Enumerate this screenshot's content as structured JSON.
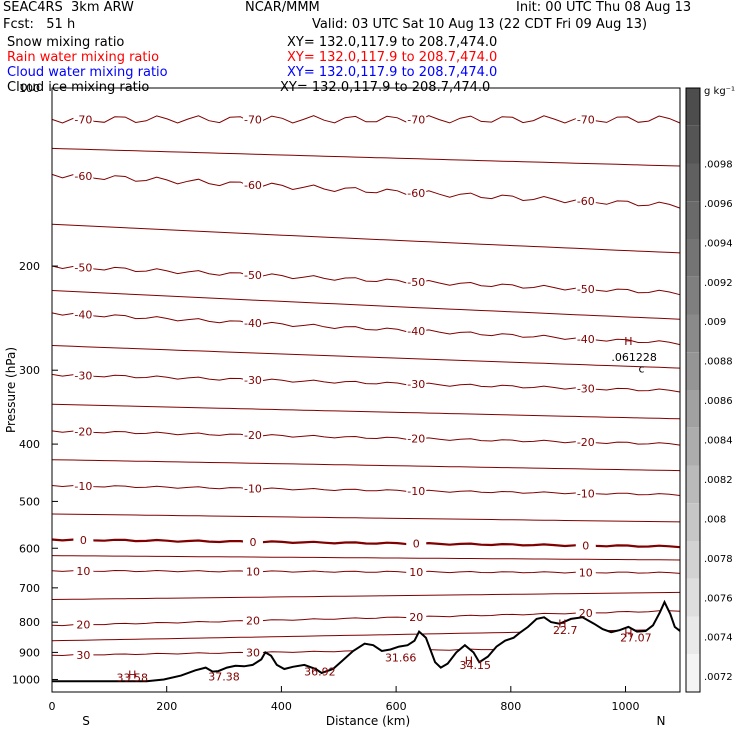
{
  "header": {
    "model": "SEAC4RS  3km ARW",
    "org": "NCAR/MMM",
    "init": "Init: 00 UTC Thu 08 Aug 13",
    "fcst": "Fcst:   51 h",
    "valid": "Valid: 03 UTC Sat 10 Aug 13 (22 CDT Fri 09 Aug 13)"
  },
  "fields": [
    {
      "name": "Snow mixing ratio",
      "xy": "XY= 132.0,117.9 to 208.7,474.0",
      "color": "#000000"
    },
    {
      "name": "Rain water mixing ratio",
      "xy": "XY= 132.0,117.9 to 208.7,474.0",
      "color": "#ff0000"
    },
    {
      "name": "Cloud water mixing ratio",
      "xy": "XY= 132.0,117.9 to 208.7,474.0",
      "color": "#0000ff"
    },
    {
      "name": "Cloud ice mixing ratio",
      "xy": "XY= 132.0,117.9 to 208.7,474.0",
      "color": "#000000"
    }
  ],
  "chart_data": {
    "type": "line",
    "xlabel": "Distance (km)",
    "ylabel": "Pressure (hPa)",
    "xlim": [
      0,
      1095
    ],
    "ylim": [
      1050,
      100
    ],
    "y_scale": "log",
    "xticks": [
      0,
      200,
      400,
      600,
      800,
      1000
    ],
    "yticks": [
      200,
      300,
      400,
      500,
      600,
      700,
      800,
      900,
      1000
    ],
    "ytick_top_label": "100",
    "end_labels": {
      "left": "S",
      "right": "N"
    },
    "contour_color": "#800000",
    "freezing_level_color": "#800000",
    "temperature_isotherm_labels": [
      "-70",
      "-60",
      "-50",
      "-40",
      "-30",
      "-20",
      "-10",
      "0",
      "10",
      "20",
      "30"
    ],
    "temperature_isotherms": [
      {
        "label": "-70",
        "p_left": 113,
        "p_right": 113
      },
      {
        "label": "-60",
        "p_left": 140,
        "p_right": 158
      },
      {
        "label": "-50",
        "p_left": 200,
        "p_right": 222
      },
      {
        "label": "-40",
        "p_left": 240,
        "p_right": 270
      },
      {
        "label": "-30",
        "p_left": 305,
        "p_right": 325
      },
      {
        "label": "-20",
        "p_left": 380,
        "p_right": 400
      },
      {
        "label": "-10",
        "p_left": 470,
        "p_right": 487
      },
      {
        "label": "0",
        "p_left": 580,
        "p_right": 596
      },
      {
        "label": "10",
        "p_left": 655,
        "p_right": 660
      },
      {
        "label": "20",
        "p_left": 810,
        "p_right": 765
      },
      {
        "label": "30",
        "p_left": 910,
        "p_right": 880
      }
    ],
    "terrain": {
      "x": [
        0,
        165,
        195,
        225,
        250,
        268,
        280,
        290,
        305,
        320,
        335,
        350,
        365,
        372,
        382,
        392,
        405,
        420,
        440,
        460,
        470,
        490,
        505,
        525,
        545,
        560,
        575,
        590,
        605,
        620,
        632,
        640,
        652,
        668,
        678,
        690,
        705,
        720,
        735,
        745,
        760,
        775,
        790,
        805,
        815,
        830,
        845,
        858,
        870,
        885,
        905,
        925,
        945,
        960,
        975,
        990,
        1005,
        1020,
        1035,
        1048,
        1060,
        1068,
        1078,
        1086,
        1095
      ],
      "p": [
        1007,
        1007,
        1000,
        985,
        965,
        955,
        970,
        968,
        955,
        948,
        950,
        945,
        925,
        900,
        912,
        945,
        960,
        952,
        945,
        960,
        975,
        960,
        932,
        895,
        870,
        875,
        895,
        890,
        880,
        875,
        860,
        830,
        850,
        935,
        955,
        940,
        900,
        875,
        900,
        935,
        915,
        880,
        860,
        850,
        835,
        815,
        790,
        785,
        800,
        805,
        790,
        785,
        805,
        822,
        832,
        825,
        815,
        830,
        828,
        810,
        770,
        740,
        775,
        815,
        828
      ]
    },
    "annotations": [
      {
        "text": "H",
        "x": 140,
        "p": 980
      },
      {
        "text": "33.58",
        "x": 140,
        "p": 993
      },
      {
        "text": "37.38",
        "x": 300,
        "p": 988
      },
      {
        "text": "36.92",
        "x": 467,
        "p": 970
      },
      {
        "text": "31.66",
        "x": 608,
        "p": 918
      },
      {
        "text": "H",
        "x": 727,
        "p": 928
      },
      {
        "text": "34.15",
        "x": 738,
        "p": 945
      },
      {
        "text": "H",
        "x": 890,
        "p": 805
      },
      {
        "text": "22.7",
        "x": 895,
        "p": 825
      },
      {
        "text": "H",
        "x": 1005,
        "p": 835
      },
      {
        "text": "27.07",
        "x": 1018,
        "p": 850
      },
      {
        "text": "H",
        "x": 1005,
        "p": 268
      },
      {
        "text": ".061228",
        "x": 1015,
        "p": 285
      },
      {
        "text": "c",
        "x": 1028,
        "p": 298
      }
    ],
    "colorbar": {
      "unit": "g kg⁻¹",
      "labels": [
        ".0098",
        ".0096",
        ".0094",
        ".0092",
        ".009",
        ".0088",
        ".0086",
        ".0084",
        ".0082",
        ".008",
        ".0078",
        ".0076",
        ".0074",
        ".0072"
      ],
      "colors": [
        "#4d4d4d",
        "#555555",
        "#606060",
        "#6a6a6a",
        "#747474",
        "#7f7f7f",
        "#8a8a8a",
        "#959595",
        "#a1a1a1",
        "#adadad",
        "#bababa",
        "#c6c6c6",
        "#d2d2d2",
        "#dedede",
        "#e9e9e9",
        "#f4f4f4"
      ]
    }
  }
}
